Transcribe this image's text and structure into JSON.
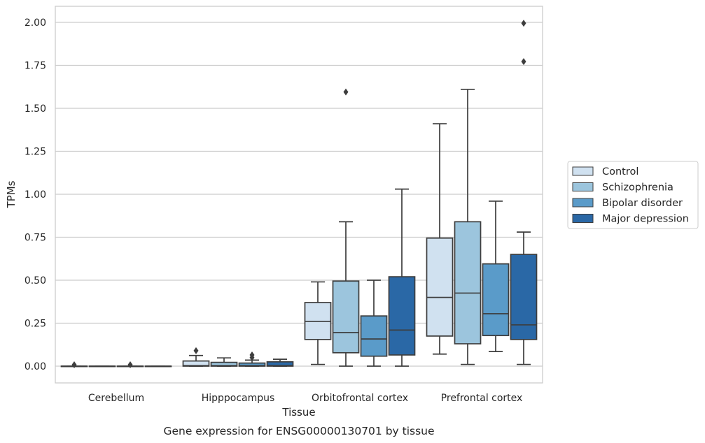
{
  "caption": "Gene expression for ENSG00000130701 by tissue",
  "chart_data": {
    "type": "box",
    "title": "",
    "xlabel": "Tissue",
    "ylabel": "TPMs",
    "ylim": [
      -0.1,
      2.09
    ],
    "yticks": [
      "0.00",
      "0.25",
      "0.50",
      "0.75",
      "1.00",
      "1.25",
      "1.50",
      "1.75",
      "2.00"
    ],
    "ytick_values": [
      0,
      0.25,
      0.5,
      0.75,
      1.0,
      1.25,
      1.5,
      1.75,
      2.0
    ],
    "grid": "horizontal",
    "legend_position": "right",
    "categories": [
      "Cerebellum",
      "Hipppocampus",
      "Orbitofrontal cortex",
      "Prefrontal cortex"
    ],
    "series": [
      {
        "name": "Control",
        "color": "#d0e1f0",
        "boxes": [
          {
            "whisker_low": 0,
            "q1": 0,
            "median": 0,
            "q3": 0,
            "whisker_high": 0,
            "outliers": [
              0.008
            ]
          },
          {
            "whisker_low": 0,
            "q1": 0,
            "median": 0.003,
            "q3": 0.03,
            "whisker_high": 0.062,
            "outliers": [
              0.09
            ]
          },
          {
            "whisker_low": 0.01,
            "q1": 0.155,
            "median": 0.26,
            "q3": 0.37,
            "whisker_high": 0.49,
            "outliers": []
          },
          {
            "whisker_low": 0.07,
            "q1": 0.175,
            "median": 0.4,
            "q3": 0.745,
            "whisker_high": 1.41,
            "outliers": []
          }
        ]
      },
      {
        "name": "Schizophrenia",
        "color": "#9cc5dd",
        "boxes": [
          {
            "whisker_low": 0,
            "q1": 0,
            "median": 0,
            "q3": 0,
            "whisker_high": 0,
            "outliers": []
          },
          {
            "whisker_low": 0,
            "q1": 0,
            "median": 0.003,
            "q3": 0.022,
            "whisker_high": 0.048,
            "outliers": []
          },
          {
            "whisker_low": 0,
            "q1": 0.078,
            "median": 0.195,
            "q3": 0.495,
            "whisker_high": 0.84,
            "outliers": [
              1.595
            ]
          },
          {
            "whisker_low": 0.01,
            "q1": 0.13,
            "median": 0.425,
            "q3": 0.84,
            "whisker_high": 1.61,
            "outliers": []
          }
        ]
      },
      {
        "name": "Bipolar disorder",
        "color": "#5a9bc9",
        "boxes": [
          {
            "whisker_low": 0,
            "q1": 0,
            "median": 0,
            "q3": 0,
            "whisker_high": 0,
            "outliers": [
              0.008
            ]
          },
          {
            "whisker_low": 0,
            "q1": 0,
            "median": 0.003,
            "q3": 0.018,
            "whisker_high": 0.035,
            "outliers": [
              0.05,
              0.065
            ]
          },
          {
            "whisker_low": 0,
            "q1": 0.058,
            "median": 0.158,
            "q3": 0.292,
            "whisker_high": 0.5,
            "outliers": []
          },
          {
            "whisker_low": 0.085,
            "q1": 0.178,
            "median": 0.305,
            "q3": 0.595,
            "whisker_high": 0.96,
            "outliers": []
          }
        ]
      },
      {
        "name": "Major depression",
        "color": "#2a68a6",
        "boxes": [
          {
            "whisker_low": 0,
            "q1": 0,
            "median": 0,
            "q3": 0,
            "whisker_high": 0,
            "outliers": []
          },
          {
            "whisker_low": 0,
            "q1": 0,
            "median": 0.003,
            "q3": 0.025,
            "whisker_high": 0.04,
            "outliers": []
          },
          {
            "whisker_low": 0,
            "q1": 0.065,
            "median": 0.21,
            "q3": 0.52,
            "whisker_high": 1.03,
            "outliers": []
          },
          {
            "whisker_low": 0.01,
            "q1": 0.155,
            "median": 0.24,
            "q3": 0.65,
            "whisker_high": 0.78,
            "outliers": [
              1.995,
              1.772
            ]
          }
        ]
      }
    ]
  }
}
